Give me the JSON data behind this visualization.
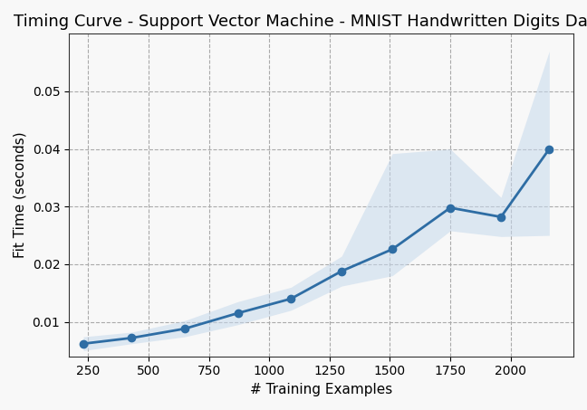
{
  "title": "Timing Curve - Support Vector Machine - MNIST Handwritten Digits Dataset",
  "xlabel": "# Training Examples",
  "ylabel": "Fit Time (seconds)",
  "x": [
    230,
    430,
    650,
    870,
    1090,
    1300,
    1510,
    1750,
    1960,
    2160
  ],
  "y_mean": [
    0.0062,
    0.0072,
    0.0088,
    0.0115,
    0.014,
    0.0188,
    0.0226,
    0.0298,
    0.0282,
    0.04
  ],
  "y_lower": [
    0.005,
    0.0062,
    0.0074,
    0.0095,
    0.012,
    0.0162,
    0.018,
    0.0258,
    0.0248,
    0.025
  ],
  "y_upper": [
    0.0074,
    0.0082,
    0.0102,
    0.0135,
    0.016,
    0.0214,
    0.0392,
    0.04,
    0.0316,
    0.057
  ],
  "line_color": "#2e6da4",
  "fill_color": "#c6d9ec",
  "fill_alpha": 0.55,
  "xlim": [
    170,
    2260
  ],
  "ylim": [
    0.004,
    0.06
  ],
  "xticks": [
    250,
    500,
    750,
    1000,
    1250,
    1500,
    1750,
    2000
  ],
  "yticks": [
    0.01,
    0.02,
    0.03,
    0.04,
    0.05
  ],
  "grid_color": "#aaaaaa",
  "grid_linestyle": "--",
  "title_fontsize": 13,
  "axis_label_fontsize": 11,
  "tick_fontsize": 10,
  "linewidth": 2.0,
  "markersize": 6,
  "bg_color": "#f8f8f8"
}
